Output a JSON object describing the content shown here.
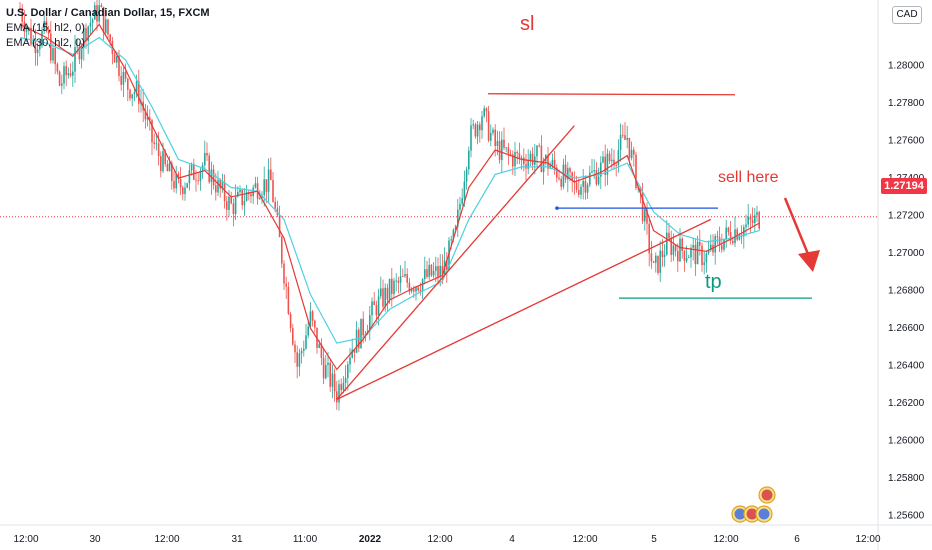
{
  "header": {
    "title": "U.S. Dollar / Canadian Dollar, 15, FXCM",
    "indicators": [
      "EMA (15, hl2, 0)",
      "EMA (30, hl2, 0)"
    ],
    "currency_button": "CAD",
    "last_price": "1.27194"
  },
  "annotations": {
    "sl": "sl",
    "sell": "sell here",
    "tp": "tp"
  },
  "chart_data": {
    "type": "line",
    "symbol": "USDCAD",
    "timeframe": "15",
    "source": "FXCM",
    "y_ticks": [
      "1.25600",
      "1.25800",
      "1.26000",
      "1.26200",
      "1.26400",
      "1.26600",
      "1.26800",
      "1.27000",
      "1.27200",
      "1.27400",
      "1.27600",
      "1.27800",
      "1.28000"
    ],
    "ylim": [
      1.2555,
      1.2835
    ],
    "x_ticks": [
      "12:00",
      "30",
      "12:00",
      "31",
      "11:00",
      "2022",
      "12:00",
      "4",
      "12:00",
      "5",
      "12:00",
      "6",
      "12:00"
    ],
    "last_price": 1.27194,
    "levels": {
      "sl": 1.2785,
      "sell": 1.2724,
      "tp": 1.2676
    },
    "price_path": [
      [
        0,
        1.283
      ],
      [
        6,
        1.2812
      ],
      [
        12,
        1.2818
      ],
      [
        18,
        1.279
      ],
      [
        24,
        1.28
      ],
      [
        30,
        1.282
      ],
      [
        36,
        1.283
      ],
      [
        42,
        1.281
      ],
      [
        48,
        1.279
      ],
      [
        54,
        1.2785
      ],
      [
        60,
        1.276
      ],
      [
        66,
        1.2745
      ],
      [
        72,
        1.2735
      ],
      [
        78,
        1.2742
      ],
      [
        84,
        1.2748
      ],
      [
        90,
        1.2735
      ],
      [
        96,
        1.2725
      ],
      [
        102,
        1.273
      ],
      [
        108,
        1.2736
      ],
      [
        114,
        1.2738
      ],
      [
        120,
        1.269
      ],
      [
        126,
        1.264
      ],
      [
        132,
        1.2665
      ],
      [
        138,
        1.264
      ],
      [
        144,
        1.2625
      ],
      [
        150,
        1.2648
      ],
      [
        156,
        1.266
      ],
      [
        162,
        1.2672
      ],
      [
        168,
        1.268
      ],
      [
        174,
        1.2685
      ],
      [
        180,
        1.2684
      ],
      [
        186,
        1.2688
      ],
      [
        192,
        1.269
      ],
      [
        198,
        1.271
      ],
      [
        204,
        1.276
      ],
      [
        210,
        1.2775
      ],
      [
        216,
        1.2757
      ],
      [
        222,
        1.2752
      ],
      [
        228,
        1.275
      ],
      [
        234,
        1.2752
      ],
      [
        240,
        1.2748
      ],
      [
        246,
        1.2742
      ],
      [
        252,
        1.2735
      ],
      [
        258,
        1.274
      ],
      [
        264,
        1.2745
      ],
      [
        270,
        1.2752
      ],
      [
        276,
        1.2762
      ],
      [
        282,
        1.273
      ],
      [
        288,
        1.269
      ],
      [
        294,
        1.2705
      ],
      [
        300,
        1.2702
      ],
      [
        306,
        1.27
      ],
      [
        312,
        1.2698
      ],
      [
        318,
        1.2706
      ],
      [
        324,
        1.2712
      ],
      [
        330,
        1.2714
      ],
      [
        336,
        1.2719
      ]
    ],
    "ema15": [
      [
        0,
        1.2822
      ],
      [
        12,
        1.2815
      ],
      [
        24,
        1.2805
      ],
      [
        36,
        1.2822
      ],
      [
        48,
        1.2798
      ],
      [
        60,
        1.2768
      ],
      [
        72,
        1.274
      ],
      [
        84,
        1.2744
      ],
      [
        96,
        1.273
      ],
      [
        108,
        1.2733
      ],
      [
        120,
        1.2708
      ],
      [
        132,
        1.266
      ],
      [
        144,
        1.2638
      ],
      [
        156,
        1.2654
      ],
      [
        168,
        1.2675
      ],
      [
        180,
        1.2682
      ],
      [
        192,
        1.2688
      ],
      [
        204,
        1.2735
      ],
      [
        216,
        1.2755
      ],
      [
        228,
        1.275
      ],
      [
        240,
        1.2748
      ],
      [
        252,
        1.2738
      ],
      [
        264,
        1.2743
      ],
      [
        276,
        1.2752
      ],
      [
        288,
        1.2712
      ],
      [
        300,
        1.2703
      ],
      [
        312,
        1.2701
      ],
      [
        324,
        1.2708
      ],
      [
        336,
        1.2716
      ]
    ],
    "ema30": [
      [
        0,
        1.2815
      ],
      [
        12,
        1.2812
      ],
      [
        24,
        1.2806
      ],
      [
        36,
        1.2815
      ],
      [
        48,
        1.2803
      ],
      [
        60,
        1.2778
      ],
      [
        72,
        1.275
      ],
      [
        84,
        1.2745
      ],
      [
        96,
        1.2735
      ],
      [
        108,
        1.2733
      ],
      [
        120,
        1.2718
      ],
      [
        132,
        1.2678
      ],
      [
        144,
        1.2652
      ],
      [
        156,
        1.2655
      ],
      [
        168,
        1.267
      ],
      [
        180,
        1.2678
      ],
      [
        192,
        1.2685
      ],
      [
        204,
        1.2718
      ],
      [
        216,
        1.2742
      ],
      [
        228,
        1.2746
      ],
      [
        240,
        1.2746
      ],
      [
        252,
        1.274
      ],
      [
        264,
        1.2742
      ],
      [
        276,
        1.2748
      ],
      [
        288,
        1.2722
      ],
      [
        300,
        1.271
      ],
      [
        312,
        1.2706
      ],
      [
        324,
        1.2708
      ],
      [
        336,
        1.2712
      ]
    ],
    "trendlines": [
      {
        "from": [
          144,
          1.2622
        ],
        "to": [
          252,
          1.2768
        ]
      },
      {
        "from": [
          144,
          1.2622
        ],
        "to": [
          314,
          1.2718
        ]
      }
    ]
  }
}
